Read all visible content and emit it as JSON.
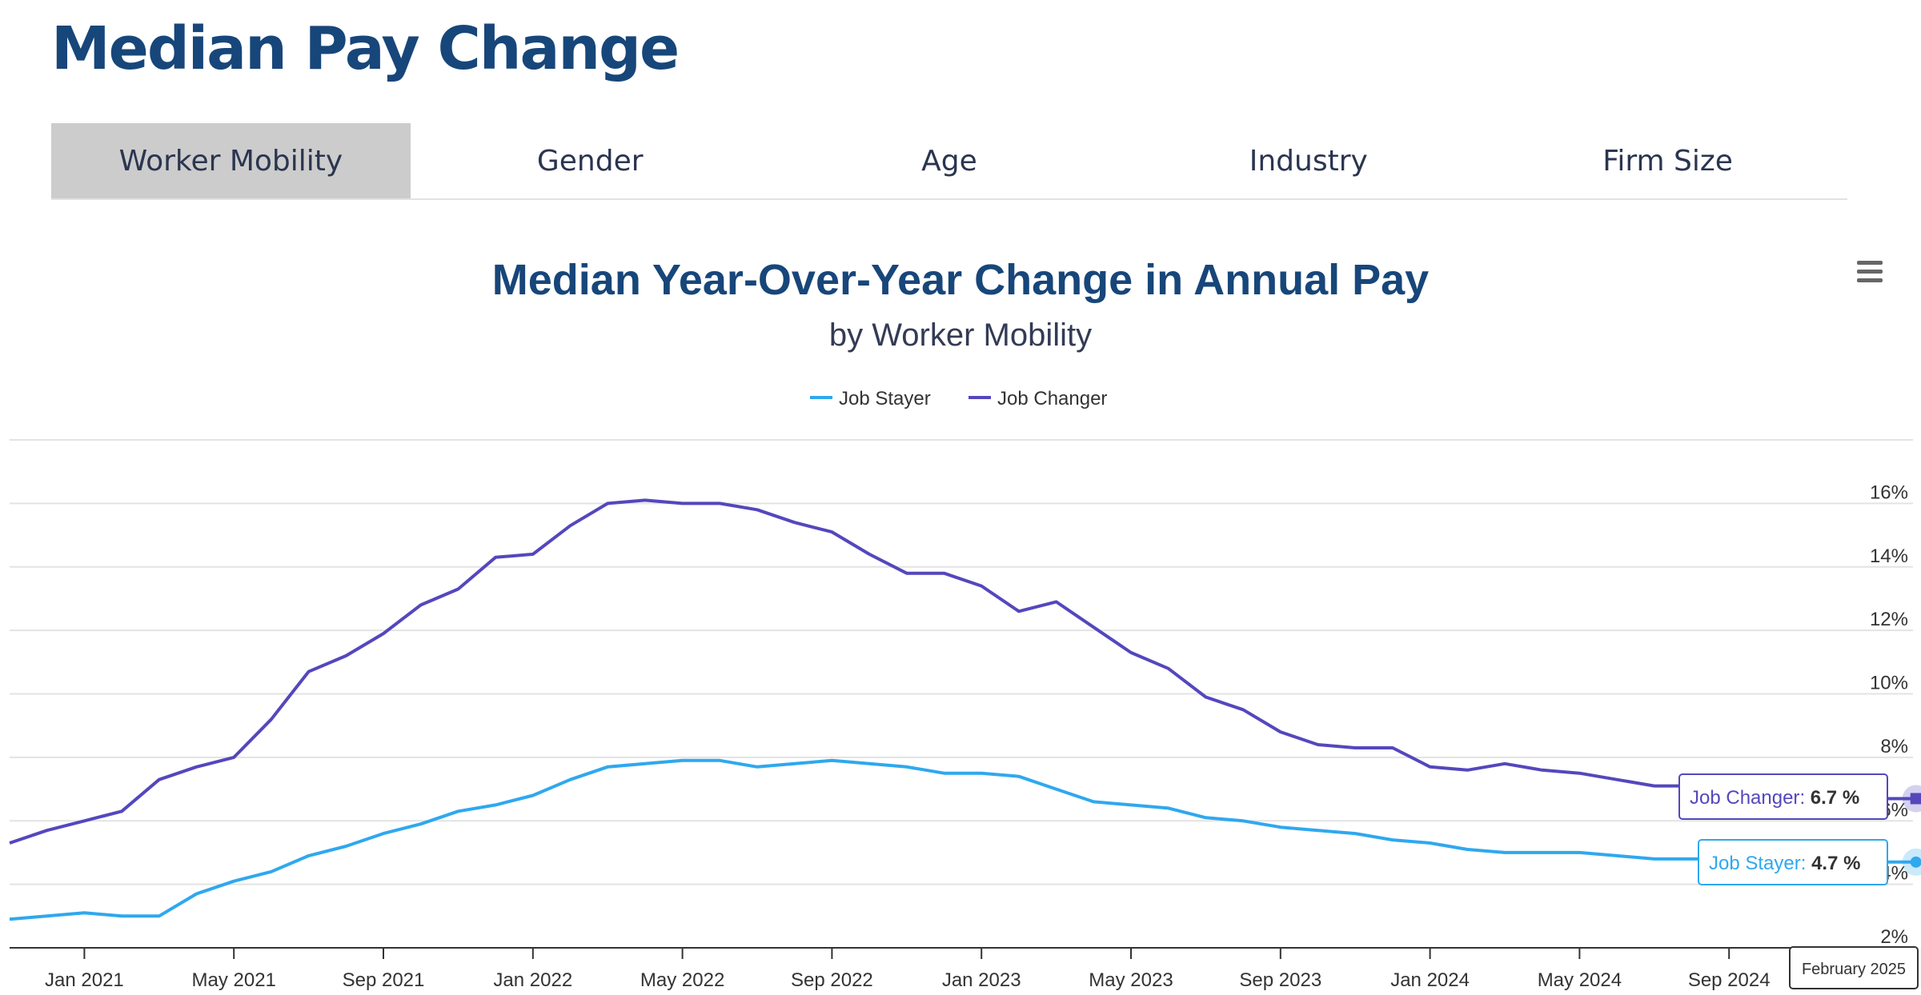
{
  "page": {
    "title": "Median Pay Change"
  },
  "tabs": [
    {
      "label": "Worker Mobility",
      "active": true
    },
    {
      "label": "Gender",
      "active": false
    },
    {
      "label": "Age",
      "active": false
    },
    {
      "label": "Industry",
      "active": false
    },
    {
      "label": "Firm Size",
      "active": false
    }
  ],
  "menu": {
    "icon": "hamburger-menu-icon"
  },
  "colors": {
    "job_stayer": "#2fa8ee",
    "job_changer": "#5447bd",
    "title": "#17467a"
  },
  "tooltips": {
    "changer": {
      "name": "Job Changer",
      "value": "6.7 %"
    },
    "stayer": {
      "name": "Job Stayer",
      "value": "4.7 %"
    },
    "date": "February 2025"
  },
  "chart_data": {
    "type": "line",
    "title": "Median Year-Over-Year Change in Annual Pay",
    "subtitle": "by Worker Mobility",
    "legend_position": "top-center",
    "grid": true,
    "x": [
      "2020-11",
      "2020-12",
      "2021-01",
      "2021-02",
      "2021-03",
      "2021-04",
      "2021-05",
      "2021-06",
      "2021-07",
      "2021-08",
      "2021-09",
      "2021-10",
      "2021-11",
      "2021-12",
      "2022-01",
      "2022-02",
      "2022-03",
      "2022-04",
      "2022-05",
      "2022-06",
      "2022-07",
      "2022-08",
      "2022-09",
      "2022-10",
      "2022-11",
      "2022-12",
      "2023-01",
      "2023-02",
      "2023-03",
      "2023-04",
      "2023-05",
      "2023-06",
      "2023-07",
      "2023-08",
      "2023-09",
      "2023-10",
      "2023-11",
      "2023-12",
      "2024-01",
      "2024-02",
      "2024-03",
      "2024-04",
      "2024-05",
      "2024-06",
      "2024-07",
      "2024-08",
      "2024-09",
      "2024-10",
      "2024-11",
      "2024-12",
      "2025-01",
      "2025-02"
    ],
    "x_tick_labels": [
      "Jan 2021",
      "May 2021",
      "Sep 2021",
      "Jan 2022",
      "May 2022",
      "Sep 2022",
      "Jan 2023",
      "May 2023",
      "Sep 2023",
      "Jan 2024",
      "May 2024",
      "Sep 2024"
    ],
    "x_tick_positions": [
      "2021-01",
      "2021-05",
      "2021-09",
      "2022-01",
      "2022-05",
      "2022-09",
      "2023-01",
      "2023-05",
      "2023-09",
      "2024-01",
      "2024-05",
      "2024-09"
    ],
    "y_tick_labels": [
      "2%",
      "4%",
      "6%",
      "8%",
      "10%",
      "12%",
      "14%",
      "16%"
    ],
    "y_tick_values": [
      2,
      4,
      6,
      8,
      10,
      12,
      14,
      16
    ],
    "ylim": [
      2,
      18
    ],
    "series": [
      {
        "name": "Job Stayer",
        "color": "#2fa8ee",
        "values": [
          2.9,
          3.0,
          3.1,
          3.0,
          3.0,
          3.7,
          4.1,
          4.4,
          4.9,
          5.2,
          5.6,
          5.9,
          6.3,
          6.5,
          6.8,
          7.3,
          7.7,
          7.8,
          7.9,
          7.9,
          7.7,
          7.8,
          7.9,
          7.8,
          7.7,
          7.5,
          7.5,
          7.4,
          7.0,
          6.6,
          6.5,
          6.4,
          6.1,
          6.0,
          5.8,
          5.7,
          5.6,
          5.4,
          5.3,
          5.1,
          5.0,
          5.0,
          5.0,
          4.9,
          4.8,
          4.8,
          4.8,
          4.7,
          4.7,
          4.7,
          4.7,
          4.7
        ]
      },
      {
        "name": "Job Changer",
        "color": "#5447bd",
        "values": [
          5.3,
          5.7,
          6.0,
          6.3,
          7.3,
          7.7,
          8.0,
          9.2,
          10.7,
          11.2,
          11.9,
          12.8,
          13.3,
          14.3,
          14.4,
          15.3,
          16.0,
          16.1,
          16.0,
          16.0,
          15.8,
          15.4,
          15.1,
          14.4,
          13.8,
          13.8,
          13.4,
          12.6,
          12.9,
          12.1,
          11.3,
          10.8,
          9.9,
          9.5,
          8.8,
          8.4,
          8.3,
          8.3,
          7.7,
          7.6,
          7.8,
          7.6,
          7.5,
          7.3,
          7.1,
          7.1,
          6.9,
          6.8,
          6.8,
          6.7,
          6.7,
          6.7
        ]
      }
    ]
  }
}
